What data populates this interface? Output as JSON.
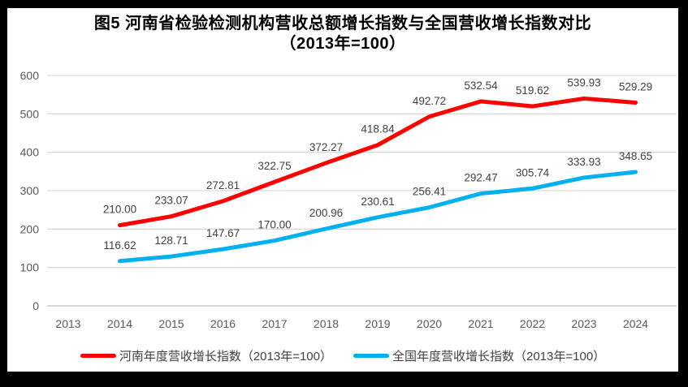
{
  "title": {
    "line1": "图5  河南省检验检测机构营收总额增长指数与全国营收增长指数对比",
    "line2": "（2013年=100）"
  },
  "legend": {
    "henan": "河南年度营收增长指数（2013年=100）",
    "national": "全国年度营收增长指数（2013年=100）"
  },
  "colors": {
    "henan_line": "#FF0000",
    "national_line": "#00B0F0",
    "gridline": "#D9D9D9",
    "axis_line": "#BFBFBF",
    "tick_text": "#595959",
    "value_label_text": "#404040",
    "frame_border": "#000000"
  },
  "chart_data": {
    "type": "line",
    "title": "图5 河南省检验检测机构营收总额增长指数与全国营收增长指数对比（2013年=100）",
    "categories": [
      "2013",
      "2014",
      "2015",
      "2016",
      "2017",
      "2018",
      "2019",
      "2020",
      "2021",
      "2022",
      "2023",
      "2024"
    ],
    "series": [
      {
        "name": "河南年度营收增长指数（2013年=100）",
        "color": "#FF0000",
        "values": [
          null,
          210.0,
          233.07,
          272.81,
          322.75,
          372.27,
          418.84,
          492.72,
          532.54,
          519.62,
          539.93,
          529.29
        ]
      },
      {
        "name": "全国年度营收增长指数（2013年=100）",
        "color": "#00B0F0",
        "values": [
          null,
          116.62,
          128.71,
          147.67,
          170.0,
          200.96,
          230.61,
          256.41,
          292.47,
          305.74,
          333.93,
          348.65
        ]
      }
    ],
    "xlabel": "",
    "ylabel": "",
    "ylim": [
      0,
      600
    ],
    "yticks": [
      0,
      100,
      200,
      300,
      400,
      500,
      600
    ],
    "grid": true,
    "legend_position": "bottom",
    "value_labels": true,
    "value_label_format": "2-decimals"
  }
}
